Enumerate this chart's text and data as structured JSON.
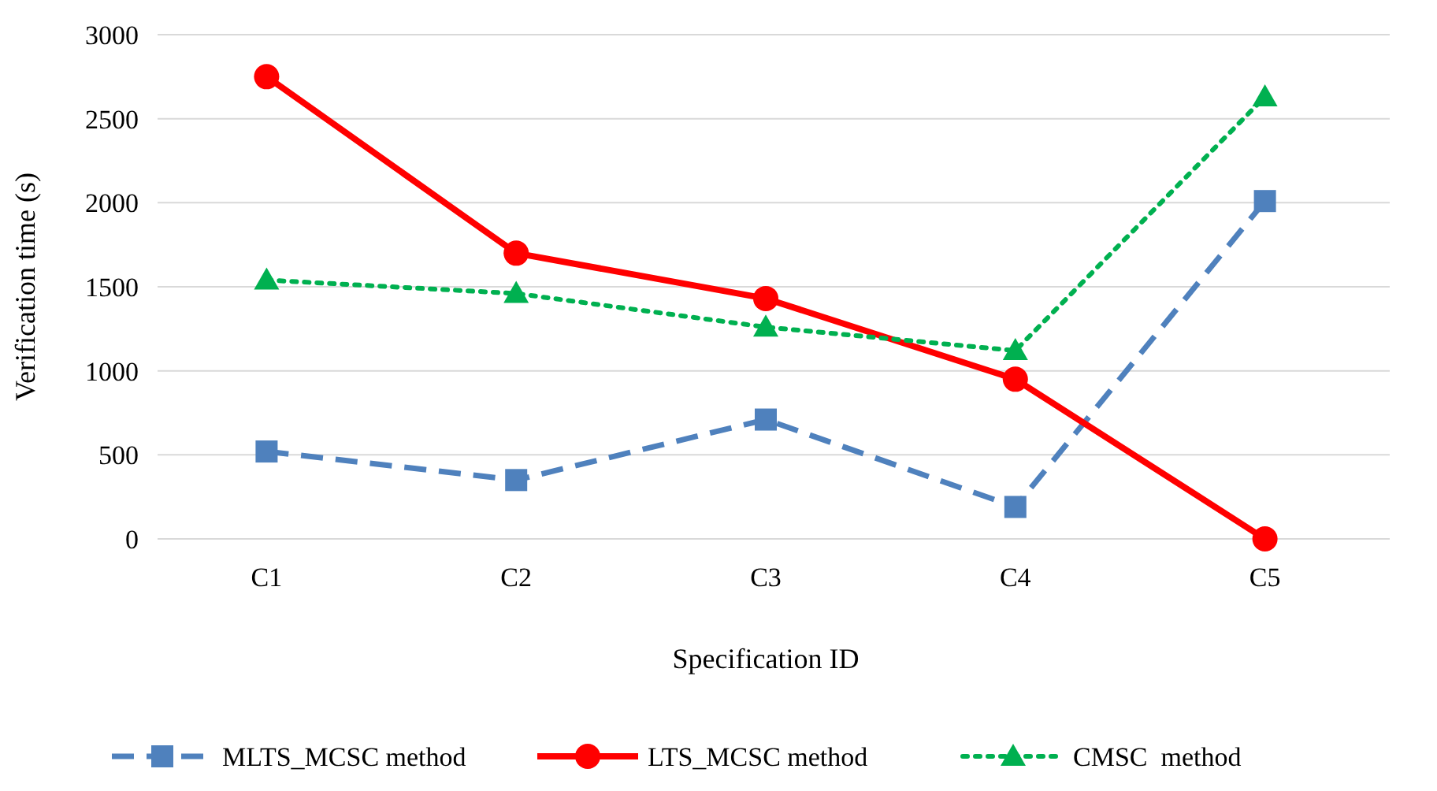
{
  "chart_data": {
    "type": "line",
    "xlabel": "Specification ID",
    "ylabel": "Verification time (s)",
    "categories": [
      "C1",
      "C2",
      "C3",
      "C4",
      "C5"
    ],
    "series": [
      {
        "name": "MLTS_MCSC method",
        "color": "#4f81bd",
        "values": [
          520,
          350,
          710,
          190,
          2010
        ],
        "marker": "square",
        "line_style": "dashed"
      },
      {
        "name": "LTS_MCSC method",
        "color": "#ff0000",
        "values": [
          2750,
          1700,
          1430,
          950,
          0
        ],
        "marker": "circle",
        "line_style": "solid"
      },
      {
        "name": "CMSC  method",
        "color": "#00b050",
        "values": [
          1540,
          1460,
          1260,
          1120,
          2630
        ],
        "marker": "triangle",
        "line_style": "dotted"
      }
    ],
    "ylim": [
      0,
      3000
    ],
    "yticks": [
      0,
      500,
      1000,
      1500,
      2000,
      2500,
      3000
    ],
    "grid": "y",
    "legend": "bottom"
  }
}
